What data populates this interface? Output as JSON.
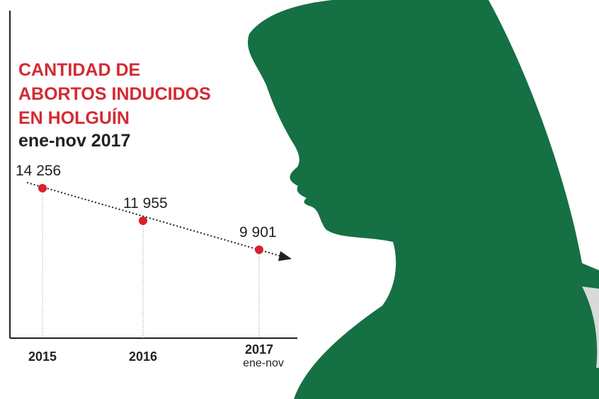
{
  "chart_data": {
    "type": "line",
    "title_lines": [
      "CANTIDAD DE",
      "ABORTOS INDUCIDOS",
      "EN HOLGUÍN"
    ],
    "subtitle": "ene-nov 2017",
    "categories": [
      "2015",
      "2016",
      "2017"
    ],
    "category_notes": [
      null,
      null,
      "ene-nov"
    ],
    "values": [
      14256,
      11955,
      9901
    ],
    "value_labels": [
      "14 256",
      "11 955",
      "9 901"
    ],
    "color": "#d9202e"
  }
}
